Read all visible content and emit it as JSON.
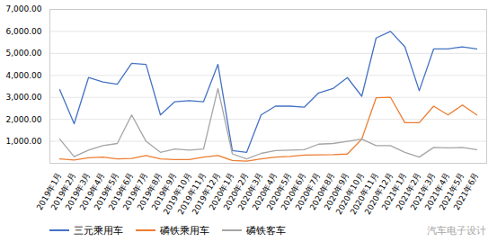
{
  "chart_data": {
    "type": "line",
    "categories": [
      "2019年1月",
      "2019年2月",
      "2019年3月",
      "2019年4月",
      "2019年5月",
      "2019年6月",
      "2019年7月",
      "2019年8月",
      "2019年9月",
      "2019年10月",
      "2019年11月",
      "2019年12月",
      "2020年1月",
      "2020年2月",
      "2020年3月",
      "2020年4月",
      "2020年5月",
      "2020年6月",
      "2020年7月",
      "2020年8月",
      "2020年9月",
      "2020年10月",
      "2020年11月",
      "2020年12月",
      "2021年1月",
      "2021年2月",
      "2021年3月",
      "2021年4月",
      "2021年5月",
      "2021年6月"
    ],
    "series": [
      {
        "name": "三元乘用车",
        "color": "#4472C4",
        "values": [
          3350,
          1800,
          3900,
          3700,
          3600,
          4550,
          4500,
          2200,
          2800,
          2850,
          2800,
          4500,
          580,
          500,
          2200,
          2600,
          2600,
          2550,
          3200,
          3400,
          3900,
          3050,
          5700,
          6000,
          5300,
          3300,
          5200,
          5200,
          5300,
          5200
        ]
      },
      {
        "name": "磷铁乘用车",
        "color": "#ED7D31",
        "values": [
          200,
          150,
          250,
          280,
          200,
          220,
          350,
          200,
          170,
          170,
          280,
          350,
          130,
          100,
          200,
          280,
          310,
          370,
          380,
          390,
          420,
          1100,
          2980,
          3000,
          1850,
          1850,
          2600,
          2200,
          2650,
          2200
        ]
      },
      {
        "name": "磷铁客车",
        "color": "#A5A5A5",
        "values": [
          1100,
          300,
          600,
          800,
          900,
          2200,
          1000,
          500,
          650,
          600,
          650,
          3400,
          430,
          200,
          450,
          580,
          600,
          620,
          870,
          900,
          1000,
          1100,
          800,
          800,
          500,
          280,
          720,
          700,
          720,
          620
        ]
      }
    ],
    "ylim": [
      0,
      7000
    ],
    "yticks": [
      {
        "value": 1000,
        "label": "1,000.00"
      },
      {
        "value": 2000,
        "label": "2,000.00"
      },
      {
        "value": 3000,
        "label": "3,000.00"
      },
      {
        "value": 4000,
        "label": "4,000.00"
      },
      {
        "value": 5000,
        "label": "5,000.00"
      },
      {
        "value": 6000,
        "label": "6,000.00"
      },
      {
        "value": 7000,
        "label": "7,000.00"
      }
    ],
    "grid": true,
    "legend": "bottom",
    "annotations": [
      "汽车电子设计"
    ]
  }
}
